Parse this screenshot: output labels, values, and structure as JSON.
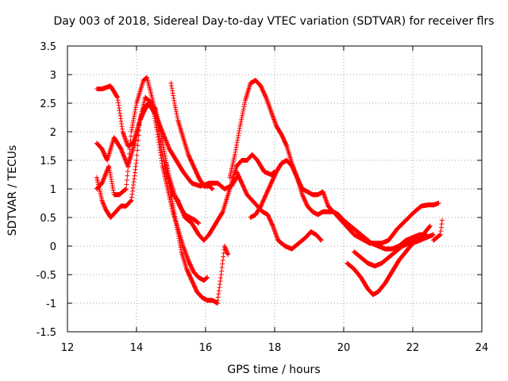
{
  "chart_data": {
    "type": "scatter",
    "title": "Day 003 of 2018, Sidereal Day-to-day VTEC variation (SDTVAR) for receiver flrs",
    "xlabel": "GPS time / hours",
    "ylabel": "SDTVAR / TECUs",
    "xlim": [
      12,
      24
    ],
    "ylim": [
      -1.5,
      3.5
    ],
    "xticks": [
      12,
      14,
      16,
      18,
      20,
      22,
      24
    ],
    "yticks": [
      -1.5,
      -1,
      -0.5,
      0,
      0.5,
      1,
      1.5,
      2,
      2.5,
      3,
      3.5
    ],
    "xtick_labels": [
      "12",
      "14",
      "16",
      "18",
      "20",
      "22",
      "24"
    ],
    "ytick_labels": [
      "-1.5",
      "-1",
      "-0.5",
      "0",
      "0.5",
      "1",
      "1.5",
      "2",
      "2.5",
      "3",
      "3.5"
    ],
    "grid": true,
    "marker": "+",
    "color": "#ff0000",
    "series": [
      {
        "name": "track-1",
        "x": [
          12.85,
          13.0,
          13.25,
          13.45,
          13.6,
          13.75,
          13.9,
          14.05,
          14.2,
          14.35,
          14.55,
          14.75,
          14.95,
          15.15,
          15.35,
          15.6,
          15.85,
          16.1,
          16.35,
          16.55,
          16.75,
          16.9
        ],
        "y": [
          2.75,
          2.75,
          2.8,
          2.6,
          2.0,
          1.75,
          1.8,
          2.1,
          2.4,
          2.5,
          2.3,
          2.0,
          1.7,
          1.5,
          1.3,
          1.1,
          1.05,
          1.1,
          1.1,
          1.0,
          1.05,
          1.2
        ]
      },
      {
        "name": "track-2",
        "x": [
          12.85,
          13.0,
          13.2,
          13.35,
          13.5,
          13.7,
          13.85,
          14.0,
          14.1,
          14.2,
          14.3,
          14.45,
          14.6,
          14.75,
          14.9,
          15.05,
          15.2,
          15.4,
          15.6,
          15.8,
          15.95,
          16.1,
          16.3,
          16.5,
          16.7,
          16.9,
          17.05,
          17.2,
          17.35,
          17.5,
          17.7,
          17.9,
          18.0
        ],
        "y": [
          1.0,
          1.1,
          1.4,
          0.9,
          0.9,
          1.0,
          2.0,
          2.5,
          2.7,
          2.9,
          2.95,
          2.6,
          2.2,
          1.6,
          1.2,
          0.9,
          0.8,
          0.5,
          0.4,
          0.2,
          0.1,
          0.2,
          0.4,
          0.6,
          1.0,
          1.4,
          1.5,
          1.5,
          1.6,
          1.5,
          1.3,
          1.25,
          1.3
        ]
      },
      {
        "name": "track-3",
        "x": [
          12.85,
          13.0,
          13.15,
          13.35,
          13.55,
          13.75,
          13.95,
          14.1,
          14.25,
          14.45,
          14.6,
          14.75,
          14.9,
          15.05,
          15.2,
          15.35,
          15.5,
          15.65,
          15.8,
          15.95,
          16.05
        ],
        "y": [
          1.8,
          1.7,
          1.5,
          1.9,
          1.7,
          1.4,
          1.8,
          2.2,
          2.6,
          2.5,
          2.0,
          1.4,
          1.0,
          0.6,
          0.3,
          0.0,
          -0.25,
          -0.45,
          -0.55,
          -0.6,
          -0.55
        ]
      },
      {
        "name": "track-4",
        "x": [
          12.85,
          13.0,
          13.1,
          13.25,
          13.4,
          13.55,
          13.7,
          13.85,
          14.0,
          14.1,
          14.25,
          14.4,
          14.55,
          14.7,
          14.85,
          15.0,
          15.15,
          15.3,
          15.45,
          15.6,
          15.75,
          15.9,
          16.05,
          16.2,
          16.35
        ],
        "y": [
          1.2,
          0.8,
          0.65,
          0.5,
          0.6,
          0.7,
          0.7,
          0.8,
          1.5,
          2.2,
          2.4,
          2.5,
          2.4,
          2.0,
          1.5,
          0.9,
          0.4,
          -0.1,
          -0.4,
          -0.6,
          -0.8,
          -0.9,
          -0.95,
          -0.95,
          -1.0
        ]
      },
      {
        "name": "track-5",
        "x": [
          14.85,
          14.95,
          15.1,
          15.25,
          15.4,
          15.55,
          15.7,
          15.8
        ],
        "y": [
          1.5,
          1.2,
          0.9,
          0.7,
          0.55,
          0.5,
          0.45,
          0.4
        ]
      },
      {
        "name": "track-6",
        "x": [
          16.35,
          16.45,
          16.55,
          16.65
        ],
        "y": [
          -0.95,
          -0.5,
          0.0,
          -0.15
        ]
      },
      {
        "name": "track-7",
        "x": [
          15.0,
          15.1,
          15.2,
          15.35,
          15.5,
          15.65,
          15.8,
          15.95,
          16.1,
          16.2
        ],
        "y": [
          2.85,
          2.5,
          2.2,
          1.9,
          1.6,
          1.4,
          1.2,
          1.05,
          1.05,
          1.0
        ]
      },
      {
        "name": "track-8",
        "x": [
          16.7,
          16.85,
          17.0,
          17.15,
          17.3,
          17.45,
          17.6,
          17.75,
          17.9,
          18.05,
          18.2,
          18.35,
          18.5,
          18.65,
          18.8,
          18.95,
          19.1,
          19.25,
          19.4,
          19.55,
          19.7,
          19.85,
          20.0,
          20.15,
          20.3,
          20.45,
          20.6,
          20.75,
          20.9,
          21.1,
          21.3,
          21.55,
          21.8,
          22.05,
          22.25,
          22.45,
          22.6,
          22.75
        ],
        "y": [
          1.2,
          1.6,
          2.1,
          2.55,
          2.85,
          2.9,
          2.8,
          2.6,
          2.35,
          2.1,
          1.95,
          1.75,
          1.45,
          1.2,
          1.0,
          0.95,
          0.9,
          0.9,
          0.95,
          0.7,
          0.6,
          0.5,
          0.4,
          0.3,
          0.2,
          0.15,
          0.1,
          0.05,
          0.05,
          0.05,
          0.1,
          0.3,
          0.45,
          0.6,
          0.7,
          0.72,
          0.72,
          0.75
        ]
      },
      {
        "name": "track-9",
        "x": [
          16.9,
          17.05,
          17.2,
          17.35,
          17.5,
          17.65,
          17.8,
          17.95,
          18.1,
          18.3,
          18.5,
          18.7,
          18.9,
          19.05,
          19.2,
          19.35
        ],
        "y": [
          1.3,
          1.1,
          0.9,
          0.8,
          0.7,
          0.6,
          0.55,
          0.35,
          0.1,
          0.0,
          -0.05,
          0.05,
          0.15,
          0.25,
          0.2,
          0.1
        ]
      },
      {
        "name": "track-10",
        "x": [
          17.3,
          17.45,
          17.6,
          17.75,
          17.9,
          18.05,
          18.2,
          18.35,
          18.5,
          18.65,
          18.8,
          18.95,
          19.1,
          19.25,
          19.4,
          19.55,
          19.7,
          19.85,
          20.0,
          20.2,
          20.4,
          20.6,
          20.8,
          21.0,
          21.2,
          21.4,
          21.6,
          21.8,
          22.0,
          22.2,
          22.4
        ],
        "y": [
          0.5,
          0.55,
          0.7,
          0.9,
          1.1,
          1.3,
          1.45,
          1.5,
          1.4,
          1.2,
          0.9,
          0.7,
          0.6,
          0.55,
          0.6,
          0.6,
          0.6,
          0.55,
          0.45,
          0.35,
          0.25,
          0.15,
          0.05,
          0.0,
          -0.05,
          -0.05,
          0.0,
          0.1,
          0.15,
          0.2,
          0.2
        ]
      },
      {
        "name": "track-11",
        "x": [
          20.1,
          20.3,
          20.5,
          20.7,
          20.85,
          21.0,
          21.2,
          21.4,
          21.6,
          21.8,
          22.0,
          22.2,
          22.4,
          22.6
        ],
        "y": [
          -0.3,
          -0.4,
          -0.55,
          -0.75,
          -0.85,
          -0.8,
          -0.65,
          -0.45,
          -0.25,
          -0.1,
          0.05,
          0.1,
          0.15,
          0.2
        ]
      },
      {
        "name": "track-12",
        "x": [
          20.3,
          20.5,
          20.7,
          20.9,
          21.1,
          21.3,
          21.5,
          21.7,
          21.9,
          22.1,
          22.3,
          22.5
        ],
        "y": [
          -0.1,
          -0.2,
          -0.3,
          -0.35,
          -0.3,
          -0.2,
          -0.1,
          0.0,
          0.05,
          0.1,
          0.2,
          0.35
        ]
      },
      {
        "name": "track-13",
        "x": [
          22.6,
          22.7,
          22.8,
          22.85
        ],
        "y": [
          0.1,
          0.15,
          0.2,
          0.45
        ]
      }
    ]
  }
}
